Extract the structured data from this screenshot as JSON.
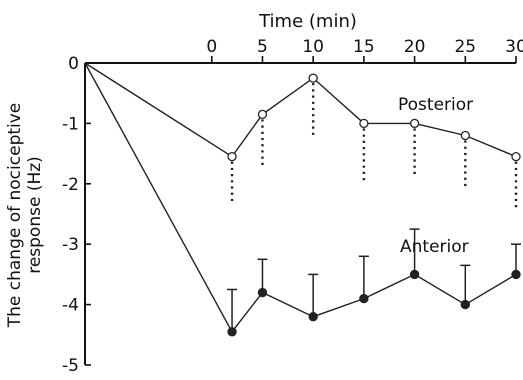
{
  "chart_data": {
    "type": "line",
    "title": "",
    "xlabel": "Time (min)",
    "ylabel_line1": "The change of nociceptive",
    "ylabel_line2": "response (Hz)",
    "xlim": [
      -12.5,
      30
    ],
    "ylim": [
      -5,
      0
    ],
    "x_ticks": [
      0,
      5,
      10,
      15,
      20,
      25,
      30
    ],
    "y_ticks": [
      0,
      -1,
      -2,
      -3,
      -4,
      -5
    ],
    "x_tick_labels": [
      "0",
      "5",
      "10",
      "15",
      "20",
      "25",
      "30"
    ],
    "y_tick_labels": [
      "0",
      "-1",
      "-2",
      "-3",
      "-4",
      "-5"
    ],
    "x_axis_position": "top",
    "grid": false,
    "series": [
      {
        "name": "Posterior",
        "marker": "open-circle",
        "error_style": "dotted-down",
        "points": [
          {
            "x": -12.5,
            "y": 0
          },
          {
            "x": 2,
            "y": -1.55,
            "err": 0.8
          },
          {
            "x": 5,
            "y": -0.85,
            "err": 0.85
          },
          {
            "x": 10,
            "y": -0.25,
            "err": 0.95
          },
          {
            "x": 15,
            "y": -1.0,
            "err": 0.95
          },
          {
            "x": 20,
            "y": -1.0,
            "err": 0.9
          },
          {
            "x": 25,
            "y": -1.2,
            "err": 0.85
          },
          {
            "x": 30,
            "y": -1.55,
            "err": 0.85
          }
        ]
      },
      {
        "name": "Anterior",
        "marker": "filled-circle",
        "error_style": "solid-up",
        "points": [
          {
            "x": -12.5,
            "y": 0
          },
          {
            "x": 2,
            "y": -4.45,
            "err": 0.7
          },
          {
            "x": 5,
            "y": -3.8,
            "err": 0.55
          },
          {
            "x": 10,
            "y": -4.2,
            "err": 0.7
          },
          {
            "x": 15,
            "y": -3.9,
            "err": 0.7
          },
          {
            "x": 20,
            "y": -3.5,
            "err": 0.75
          },
          {
            "x": 25,
            "y": -4.0,
            "err": 0.65
          },
          {
            "x": 30,
            "y": -3.5,
            "err": 0.5
          }
        ]
      }
    ]
  }
}
